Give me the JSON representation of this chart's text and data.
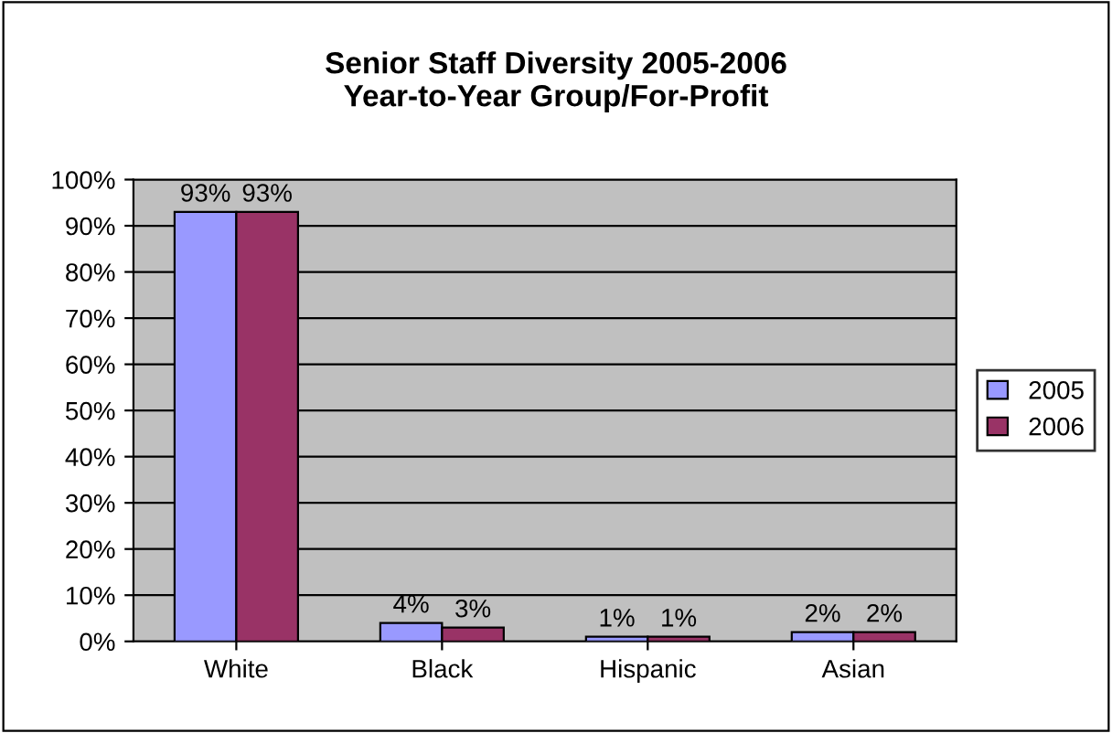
{
  "chart_data": {
    "type": "bar",
    "title": "Senior Staff Diversity 2005-2006\nYear-to-Year Group/For-Profit",
    "categories": [
      "White",
      "Black",
      "Hispanic",
      "Asian"
    ],
    "series": [
      {
        "name": "2005",
        "color": "#9999ff",
        "values": [
          93,
          4,
          1,
          2
        ],
        "value_labels": [
          "93%",
          "4%",
          "1%",
          "2%"
        ]
      },
      {
        "name": "2006",
        "color": "#993366",
        "values": [
          93,
          3,
          1,
          2
        ],
        "value_labels": [
          "93%",
          "3%",
          "1%",
          "2%"
        ]
      }
    ],
    "ylim": [
      0,
      100
    ],
    "yticks": [
      {
        "value": 0,
        "label": "0%"
      },
      {
        "value": 10,
        "label": "10%"
      },
      {
        "value": 20,
        "label": "20%"
      },
      {
        "value": 30,
        "label": "30%"
      },
      {
        "value": 40,
        "label": "40%"
      },
      {
        "value": 50,
        "label": "50%"
      },
      {
        "value": 60,
        "label": "60%"
      },
      {
        "value": 70,
        "label": "70%"
      },
      {
        "value": 80,
        "label": "80%"
      },
      {
        "value": 90,
        "label": "90%"
      },
      {
        "value": 100,
        "label": "100%"
      }
    ],
    "grid": "y",
    "legend": "right"
  }
}
